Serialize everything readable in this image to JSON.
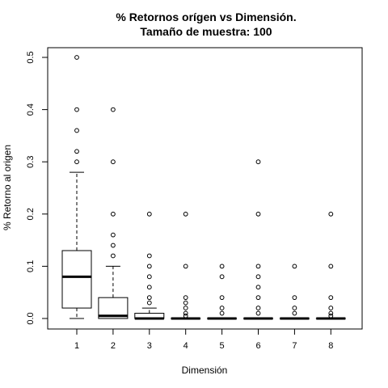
{
  "chart_data": {
    "type": "boxplot",
    "title": "% Retornos orígen vs Dimensión.",
    "subtitle": "Tamaño de muestra:  100",
    "xlabel": "Dimensión",
    "ylabel": "% Retorno al origen",
    "ylim": [
      0,
      0.5
    ],
    "yticks": [
      0.0,
      0.1,
      0.2,
      0.3,
      0.4,
      0.5
    ],
    "ytick_labels": [
      "0.0",
      "0.1",
      "0.2",
      "0.3",
      "0.4",
      "0.5"
    ],
    "categories": [
      "1",
      "2",
      "3",
      "4",
      "5",
      "6",
      "7",
      "8"
    ],
    "grid": false,
    "legend": "none",
    "boxes": [
      {
        "category": "1",
        "whisker_low": 0.0,
        "q1": 0.02,
        "median": 0.08,
        "q3": 0.13,
        "whisker_high": 0.28,
        "outliers": [
          0.3,
          0.32,
          0.36,
          0.4,
          0.5
        ]
      },
      {
        "category": "2",
        "whisker_low": 0.0,
        "q1": 0.0,
        "median": 0.005,
        "q3": 0.04,
        "whisker_high": 0.1,
        "outliers": [
          0.12,
          0.14,
          0.16,
          0.2,
          0.3,
          0.4
        ]
      },
      {
        "category": "3",
        "whisker_low": 0.0,
        "q1": 0.0,
        "median": 0.0,
        "q3": 0.01,
        "whisker_high": 0.02,
        "outliers": [
          0.03,
          0.04,
          0.06,
          0.08,
          0.1,
          0.12,
          0.2
        ]
      },
      {
        "category": "4",
        "whisker_low": 0.0,
        "q1": 0.0,
        "median": 0.0,
        "q3": 0.0,
        "whisker_high": 0.0,
        "outliers": [
          0.005,
          0.01,
          0.02,
          0.03,
          0.04,
          0.1,
          0.2
        ]
      },
      {
        "category": "5",
        "whisker_low": 0.0,
        "q1": 0.0,
        "median": 0.0,
        "q3": 0.0,
        "whisker_high": 0.0,
        "outliers": [
          0.01,
          0.02,
          0.04,
          0.08,
          0.1
        ]
      },
      {
        "category": "6",
        "whisker_low": 0.0,
        "q1": 0.0,
        "median": 0.0,
        "q3": 0.0,
        "whisker_high": 0.0,
        "outliers": [
          0.01,
          0.02,
          0.04,
          0.06,
          0.08,
          0.1,
          0.2,
          0.3
        ]
      },
      {
        "category": "7",
        "whisker_low": 0.0,
        "q1": 0.0,
        "median": 0.0,
        "q3": 0.0,
        "whisker_high": 0.0,
        "outliers": [
          0.01,
          0.02,
          0.04,
          0.1
        ]
      },
      {
        "category": "8",
        "whisker_low": 0.0,
        "q1": 0.0,
        "median": 0.0,
        "q3": 0.0,
        "whisker_high": 0.0,
        "outliers": [
          0.005,
          0.01,
          0.02,
          0.04,
          0.1,
          0.2
        ]
      }
    ],
    "colors": {
      "box_fill": "#ffffff",
      "stroke": "#000000"
    }
  }
}
